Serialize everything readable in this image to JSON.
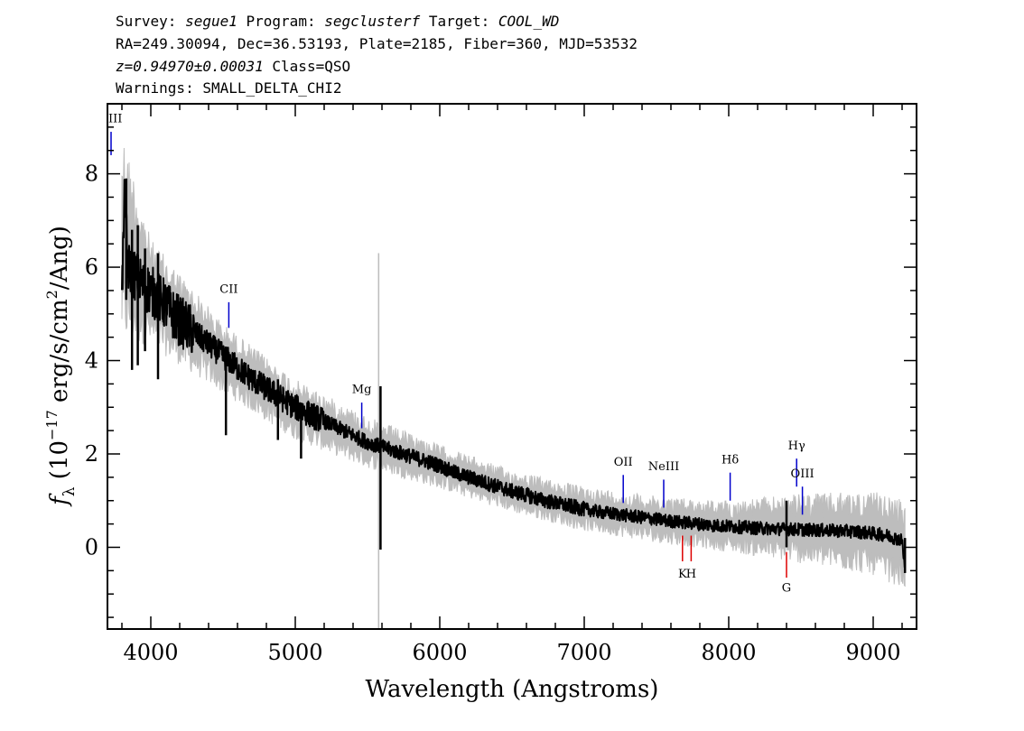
{
  "header": {
    "survey_key": "Survey:",
    "survey": "segue1",
    "program_key": "Program:",
    "program": "segclusterf",
    "target_key": "Target:",
    "target": "COOL_WD",
    "line2": "RA=249.30094, Dec=36.53193, Plate=2185, Fiber=360, MJD=53532",
    "redshift": "z=0.94970±0.00031",
    "class": "Class=QSO",
    "warnings": "Warnings: SMALL_DELTA_CHI2"
  },
  "colors": {
    "flux": "#000000",
    "error_band": "#bdbdbd",
    "emission": "#0000cc",
    "absorption": "#dd0000",
    "axes": "#000000"
  },
  "chart_data": {
    "type": "line",
    "title": "",
    "xlabel": "Wavelength (Angstroms)",
    "ylabel": "f_λ (10^-17 erg/s/cm^2/Ang)",
    "ylabel_parts": {
      "f": "f",
      "lambda": "λ",
      "open": " (10",
      "exp": "−17",
      "mid": " erg/s/cm",
      "exp2": "2",
      "close": "/Ang)"
    },
    "xlim": [
      3700,
      9300
    ],
    "ylim": [
      -1.75,
      9.5
    ],
    "xticks": [
      4000,
      5000,
      6000,
      7000,
      8000,
      9000
    ],
    "yticks": [
      0,
      2,
      4,
      6,
      8
    ],
    "grid": false,
    "series": [
      {
        "role": "flux",
        "x": [
          3800,
          3820,
          3840,
          3870,
          3900,
          3950,
          4000,
          4050,
          4100,
          4150,
          4200,
          4300,
          4400,
          4500,
          4600,
          4700,
          4800,
          4900,
          5000,
          5100,
          5200,
          5300,
          5400,
          5500,
          5600,
          5700,
          5800,
          5900,
          6000,
          6100,
          6200,
          6300,
          6400,
          6500,
          6600,
          6700,
          6800,
          6900,
          7000,
          7100,
          7200,
          7300,
          7400,
          7500,
          7600,
          7700,
          7800,
          7900,
          8000,
          8100,
          8200,
          8300,
          8400,
          8500,
          8600,
          8700,
          8800,
          8900,
          9000,
          9100,
          9200,
          9220
        ],
        "y": [
          5.4,
          7.6,
          6.0,
          5.9,
          5.8,
          5.6,
          5.5,
          5.35,
          5.2,
          5.0,
          4.85,
          4.6,
          4.35,
          4.1,
          3.85,
          3.6,
          3.4,
          3.2,
          3.0,
          2.85,
          2.7,
          2.55,
          2.4,
          2.25,
          2.15,
          2.05,
          1.95,
          1.85,
          1.75,
          1.6,
          1.5,
          1.4,
          1.3,
          1.2,
          1.12,
          1.02,
          0.95,
          0.88,
          0.82,
          0.76,
          0.72,
          0.68,
          0.64,
          0.6,
          0.56,
          0.53,
          0.5,
          0.47,
          0.45,
          0.43,
          0.41,
          0.4,
          0.39,
          0.38,
          0.37,
          0.36,
          0.35,
          0.33,
          0.3,
          0.25,
          0.15,
          -0.5
        ]
      }
    ],
    "spikes": [
      {
        "x": 3830,
        "y1": 5.3,
        "y2": 7.9
      },
      {
        "x": 3870,
        "y1": 3.8,
        "y2": 6.8
      },
      {
        "x": 3910,
        "y1": 3.9,
        "y2": 6.9
      },
      {
        "x": 3960,
        "y1": 4.2,
        "y2": 6.4
      },
      {
        "x": 4050,
        "y1": 3.6,
        "y2": 6.3
      },
      {
        "x": 4520,
        "y1": 2.4,
        "y2": 4.3
      },
      {
        "x": 4880,
        "y1": 2.3,
        "y2": 3.6
      },
      {
        "x": 5040,
        "y1": 1.9,
        "y2": 3.1
      },
      {
        "x": 5590,
        "y1": -0.05,
        "y2": 3.45
      },
      {
        "x": 8400,
        "y1": 0.0,
        "y2": 1.0
      },
      {
        "x": 9220,
        "y1": -0.55,
        "y2": 0.2
      }
    ],
    "error_band": [
      {
        "x": 3800,
        "lo": 4.4,
        "hi": 9.0
      },
      {
        "x": 4000,
        "lo": 4.3,
        "hi": 6.6
      },
      {
        "x": 4500,
        "lo": 3.3,
        "hi": 4.8
      },
      {
        "x": 5000,
        "lo": 2.3,
        "hi": 3.6
      },
      {
        "x": 5500,
        "lo": 1.7,
        "hi": 2.8
      },
      {
        "x": 6000,
        "lo": 1.25,
        "hi": 2.2
      },
      {
        "x": 6500,
        "lo": 0.75,
        "hi": 1.65
      },
      {
        "x": 7000,
        "lo": 0.35,
        "hi": 1.3
      },
      {
        "x": 7500,
        "lo": 0.1,
        "hi": 1.1
      },
      {
        "x": 8000,
        "lo": -0.1,
        "hi": 1.0
      },
      {
        "x": 8500,
        "lo": -0.35,
        "hi": 1.15
      },
      {
        "x": 9000,
        "lo": -0.6,
        "hi": 1.2
      },
      {
        "x": 9220,
        "lo": -0.9,
        "hi": 1.0
      }
    ],
    "sky_line": {
      "x": 5577,
      "y1": -1.75,
      "y2": 6.3
    },
    "emission_lines": [
      {
        "label": "III",
        "x": 3725,
        "y1": 8.4,
        "y2": 8.9,
        "label_y": 9.1
      },
      {
        "label": "CII",
        "x": 4540,
        "y1": 4.7,
        "y2": 5.25,
        "label_y": 5.45
      },
      {
        "label": "Mg",
        "x": 5460,
        "y1": 2.55,
        "y2": 3.1,
        "label_y": 3.3
      },
      {
        "label": "OII",
        "x": 7270,
        "y1": 0.95,
        "y2": 1.55,
        "label_y": 1.75
      },
      {
        "label": "NeIII",
        "x": 7550,
        "y1": 0.85,
        "y2": 1.45,
        "label_y": 1.65
      },
      {
        "label": "Hδ",
        "x": 8010,
        "y1": 1.0,
        "y2": 1.6,
        "label_y": 1.8
      },
      {
        "label": "Hγ",
        "x": 8470,
        "y1": 1.3,
        "y2": 1.9,
        "label_y": 2.1
      },
      {
        "label": "OIII",
        "x": 8510,
        "y1": 0.7,
        "y2": 1.3,
        "label_y": 1.5
      }
    ],
    "absorption_lines": [
      {
        "label": "K",
        "x": 7680,
        "y1": -0.3,
        "y2": 0.25,
        "label_y": -0.65
      },
      {
        "label": "H",
        "x": 7740,
        "y1": -0.3,
        "y2": 0.25,
        "label_y": -0.65
      },
      {
        "label": "G",
        "x": 8400,
        "y1": -0.65,
        "y2": -0.1,
        "label_y": -0.95
      }
    ]
  }
}
